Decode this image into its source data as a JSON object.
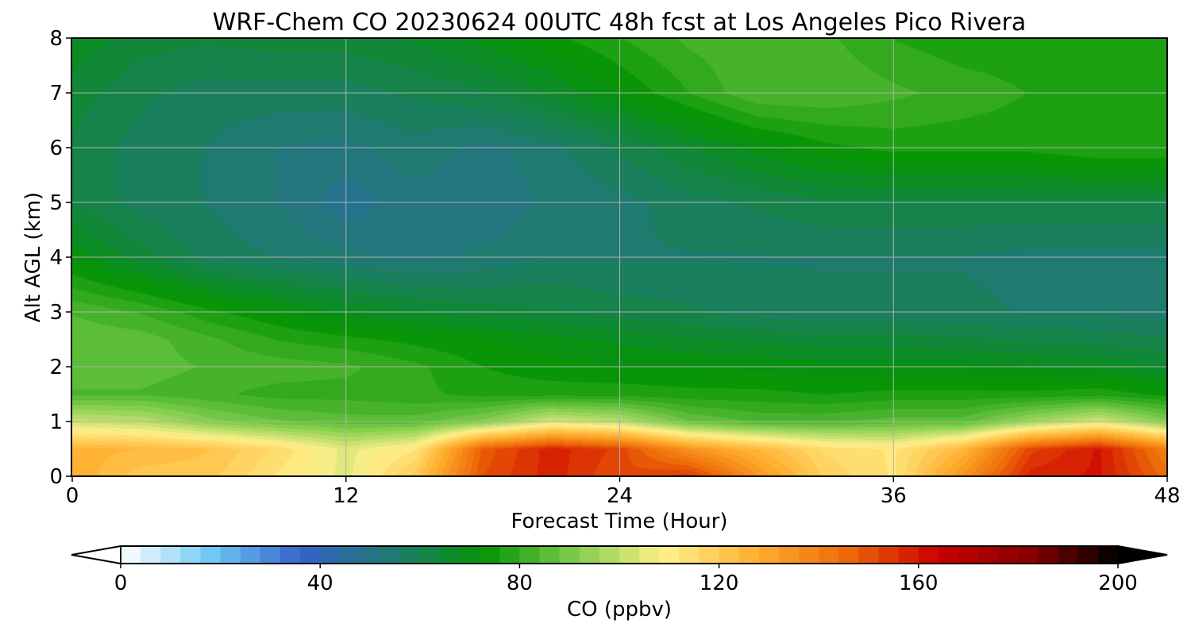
{
  "chart_data": {
    "type": "heatmap",
    "title": "WRF-Chem CO  20230624 00UTC 48h fcst at Los Angeles Pico Rivera",
    "xlabel": "Forecast Time (Hour)",
    "ylabel": "Alt AGL (km)",
    "xlim": [
      0,
      48
    ],
    "ylim": [
      0,
      8
    ],
    "x_ticks": [
      "0",
      "12",
      "24",
      "36",
      "48"
    ],
    "y_ticks": [
      "0",
      "1",
      "2",
      "3",
      "4",
      "5",
      "6",
      "7",
      "8"
    ],
    "grid": true,
    "colorbar": {
      "label": "CO  (ppbv)",
      "range": [
        0,
        200
      ],
      "ticks": [
        "0",
        "40",
        "80",
        "120",
        "160",
        "200"
      ],
      "extend": "both",
      "colors": [
        "#ffffff",
        "#6ec8f5",
        "#3562c8",
        "#1f7a70",
        "#039403",
        "#7dcc4b",
        "#fff08a",
        "#ffb030",
        "#ee6a08",
        "#cc0000",
        "#8a0000",
        "#000000"
      ]
    },
    "x": [
      0,
      3,
      6,
      9,
      12,
      15,
      18,
      21,
      24,
      27,
      30,
      33,
      36,
      39,
      42,
      45,
      48
    ],
    "y": [
      0,
      0.5,
      1,
      1.5,
      2,
      2.5,
      3,
      4,
      5,
      6,
      7,
      8
    ],
    "z": [
      [
        128,
        120,
        120,
        112,
        105,
        120,
        150,
        158,
        150,
        155,
        135,
        118,
        112,
        135,
        158,
        160,
        145
      ],
      [
        126,
        125,
        122,
        115,
        105,
        112,
        148,
        158,
        152,
        135,
        125,
        115,
        112,
        125,
        152,
        160,
        140
      ],
      [
        102,
        100,
        92,
        88,
        86,
        86,
        92,
        104,
        100,
        88,
        84,
        84,
        86,
        86,
        96,
        104,
        92
      ],
      [
        84,
        84,
        82,
        80,
        80,
        79,
        77,
        77,
        77,
        76,
        76,
        75,
        76,
        76,
        76,
        77,
        74
      ],
      [
        86,
        86,
        84,
        83,
        82,
        79,
        75,
        73,
        72,
        72,
        71,
        70,
        70,
        70,
        69,
        68,
        66
      ],
      [
        87,
        86,
        82,
        78,
        76,
        74,
        72,
        70,
        68,
        66,
        65,
        64,
        64,
        63,
        62,
        61,
        60
      ],
      [
        84,
        81,
        76,
        72,
        68,
        66,
        64,
        63,
        61,
        60,
        58,
        57,
        57,
        57,
        56,
        56,
        55
      ],
      [
        71,
        64,
        58,
        56,
        54,
        52,
        54,
        56,
        56,
        56,
        56,
        56,
        56,
        56,
        55,
        55,
        55
      ],
      [
        62,
        58,
        56,
        53,
        48,
        52,
        50,
        54,
        55,
        58,
        60,
        62,
        62,
        62,
        62,
        62,
        62
      ],
      [
        62,
        58,
        56,
        53,
        52,
        55,
        52,
        55,
        60,
        65,
        70,
        74,
        76,
        76,
        76,
        78,
        78
      ],
      [
        64,
        60,
        58,
        58,
        58,
        60,
        62,
        66,
        72,
        78,
        84,
        84,
        82,
        80,
        78,
        78,
        78
      ],
      [
        68,
        64,
        63,
        64,
        64,
        66,
        70,
        74,
        78,
        82,
        84,
        82,
        78,
        76,
        76,
        76,
        76
      ]
    ]
  }
}
